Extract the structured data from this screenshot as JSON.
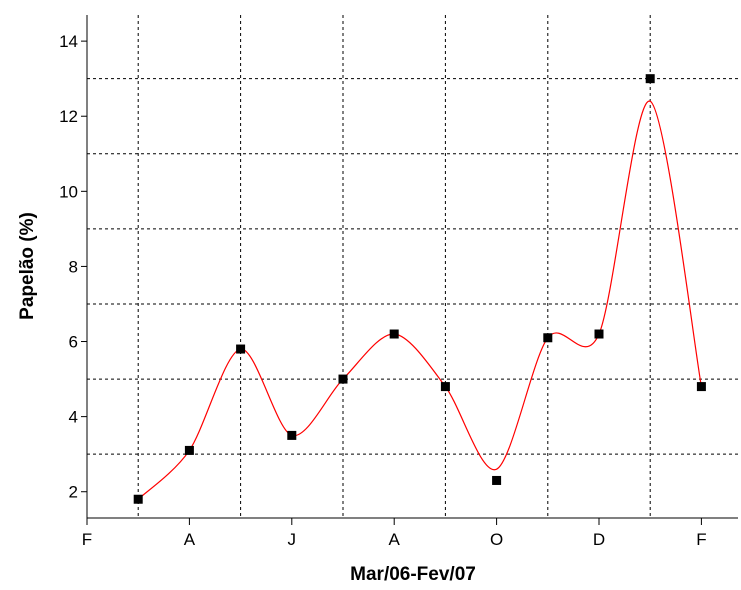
{
  "chart_data": {
    "type": "line",
    "xlabel": "Mar/06-Fev/07",
    "ylabel": "Papelão (%)",
    "x_tick_labels": [
      "F",
      "A",
      "J",
      "A",
      "O",
      "D",
      "F"
    ],
    "x_tick_positions": [
      0,
      2,
      4,
      6,
      8,
      10,
      12
    ],
    "xlim": [
      0,
      12.75
    ],
    "ylim": [
      1.5,
      15
    ],
    "y_ticks": [
      2,
      4,
      6,
      8,
      10,
      12,
      14
    ],
    "y_gridlines": [
      3,
      5,
      7,
      9,
      11,
      13
    ],
    "x_gridlines": [
      1,
      3,
      5,
      7,
      9,
      11
    ],
    "grid": true,
    "series": [
      {
        "marker": "square",
        "color": "#000000",
        "x": [
          1,
          2,
          3,
          4,
          5,
          6,
          7,
          8,
          9,
          10,
          11,
          12
        ],
        "values": [
          1.8,
          3.1,
          5.8,
          3.5,
          5.0,
          6.2,
          4.8,
          2.3,
          6.1,
          6.2,
          13.0,
          4.8
        ]
      },
      {
        "line": "smooth",
        "color": "#ff0000",
        "x": [
          1,
          2,
          3,
          4,
          5,
          6,
          7,
          8,
          9,
          10,
          11,
          12
        ],
        "values": [
          1.8,
          3.1,
          5.8,
          3.5,
          5.0,
          6.2,
          4.8,
          2.6,
          6.1,
          6.2,
          12.4,
          4.8
        ]
      }
    ]
  }
}
